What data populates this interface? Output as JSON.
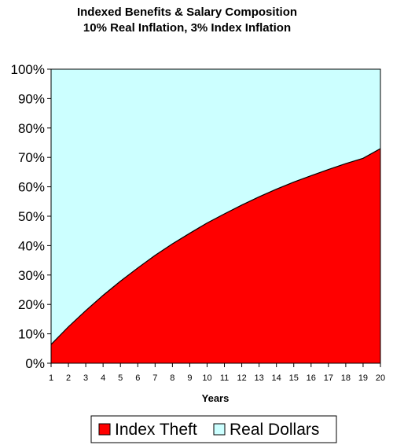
{
  "chart_data": {
    "type": "area",
    "stacked": "percent",
    "title": "Indexed Benefits & Salary Composition",
    "subtitle": "10% Real Inflation, 3% Index Inflation",
    "xlabel": "Years",
    "ylabel": "",
    "x": [
      1,
      2,
      3,
      4,
      5,
      6,
      7,
      8,
      9,
      10,
      11,
      12,
      13,
      14,
      15,
      16,
      17,
      18,
      19,
      20
    ],
    "ylim": [
      0,
      100
    ],
    "ytick_labels": [
      "0%",
      "10%",
      "20%",
      "30%",
      "40%",
      "50%",
      "60%",
      "70%",
      "80%",
      "90%",
      "100%"
    ],
    "series": [
      {
        "name": "Index Theft",
        "color": "#ff0000",
        "values": [
          6.4,
          12.4,
          17.9,
          23.1,
          27.9,
          32.4,
          36.7,
          40.6,
          44.2,
          47.7,
          50.8,
          53.8,
          56.6,
          59.2,
          61.6,
          63.8,
          65.9,
          67.9,
          69.7,
          73.0
        ]
      },
      {
        "name": "Real Dollars",
        "color": "#ccffff",
        "values": [
          93.6,
          87.6,
          82.1,
          76.9,
          72.1,
          67.6,
          63.3,
          59.4,
          55.8,
          52.3,
          49.2,
          46.2,
          43.4,
          40.8,
          38.4,
          36.2,
          34.1,
          32.1,
          30.3,
          27.0
        ]
      }
    ],
    "grid": false,
    "legend_position": "bottom"
  }
}
